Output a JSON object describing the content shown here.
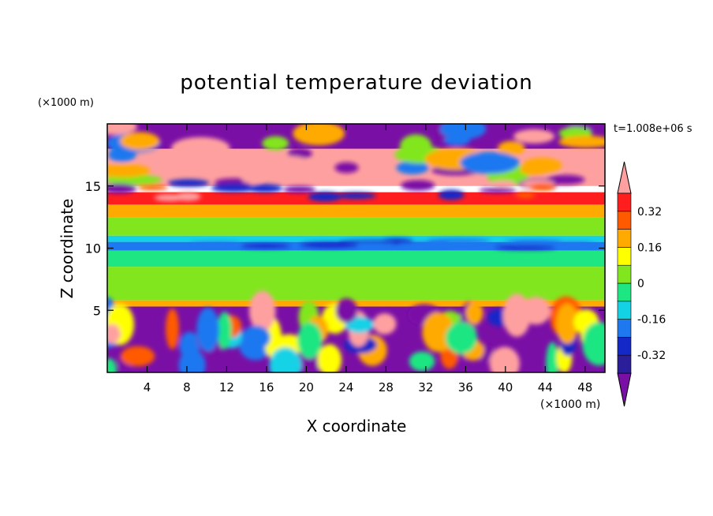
{
  "chart_data": {
    "type": "heatmap",
    "title": "potential temperature deviation",
    "xlabel": "X coordinate",
    "ylabel": "Z coordinate",
    "x_unit": "(×1000 m)",
    "y_unit": "(×1000 m)",
    "time_label": "t=1.008e+06 s",
    "xlim": [
      0,
      50
    ],
    "ylim": [
      0,
      20
    ],
    "x_ticks": [
      4,
      8,
      12,
      16,
      20,
      24,
      28,
      32,
      36,
      40,
      44,
      48
    ],
    "y_ticks": [
      5,
      10,
      15
    ],
    "colorbar": {
      "levels": [
        -0.4,
        -0.32,
        -0.24,
        -0.16,
        -0.08,
        0,
        0.08,
        0.16,
        0.24,
        0.32,
        0.4
      ],
      "labels": [
        "-0.32",
        "-0.16",
        "0",
        "0.16",
        "0.32"
      ],
      "label_values": [
        -0.32,
        -0.16,
        0,
        0.16,
        0.32
      ],
      "colors": [
        "#7a0fa6",
        "#2a1e9a",
        "#1428c8",
        "#1e78f0",
        "#14d2e6",
        "#1ee682",
        "#82e61e",
        "#ffff00",
        "#ffaa00",
        "#ff5a00",
        "#ff1e1e",
        "#ffa0a0"
      ],
      "extend": "both"
    },
    "bands": [
      {
        "z": [
          18.0,
          20.0
        ],
        "value": -0.45,
        "note": "upper mixed layer purple/pink"
      },
      {
        "z": [
          15.0,
          18.0
        ],
        "value": 0.45
      },
      {
        "z": [
          13.5,
          14.5
        ],
        "value": 0.32
      },
      {
        "z": [
          12.5,
          13.5
        ],
        "value": 0.2
      },
      {
        "z": [
          11.0,
          12.5
        ],
        "value": 0.04
      },
      {
        "z": [
          10.5,
          11.0
        ],
        "value": -0.12
      },
      {
        "z": [
          9.8,
          10.5
        ],
        "value": -0.24
      },
      {
        "z": [
          8.5,
          9.8
        ],
        "value": -0.08
      },
      {
        "z": [
          5.8,
          8.5
        ],
        "value": 0.04
      },
      {
        "z": [
          5.3,
          5.8
        ],
        "value": 0.2
      },
      {
        "z": [
          0.0,
          5.3
        ],
        "value": -0.45
      }
    ]
  }
}
